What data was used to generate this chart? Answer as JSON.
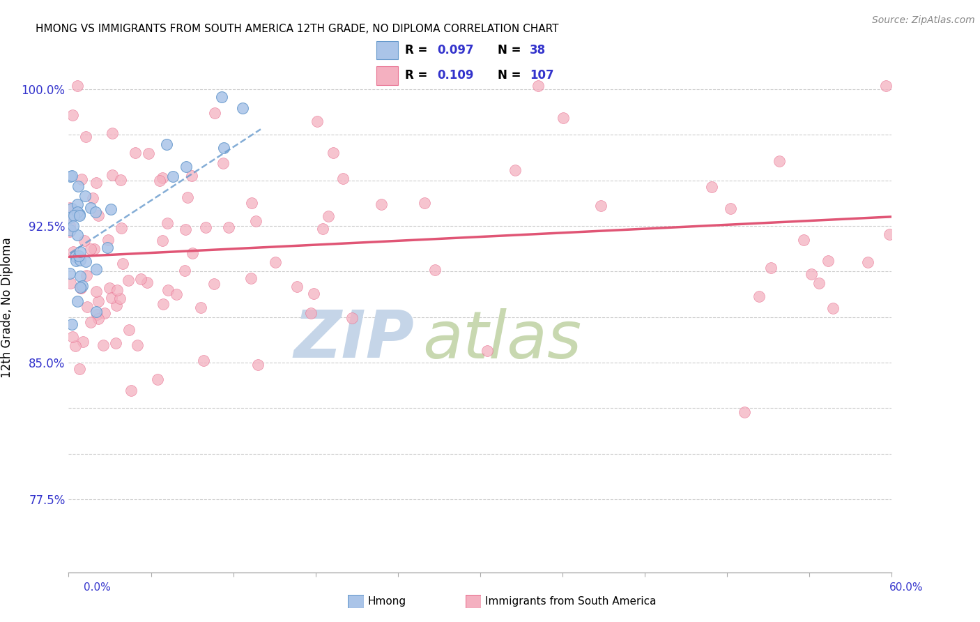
{
  "title": "HMONG VS IMMIGRANTS FROM SOUTH AMERICA 12TH GRADE, NO DIPLOMA CORRELATION CHART",
  "source_text": "Source: ZipAtlas.com",
  "ylabel": "12th Grade, No Diploma",
  "hmong_color": "#aac4e8",
  "hmong_edge_color": "#6699cc",
  "sa_color": "#f4b0c0",
  "sa_edge_color": "#e87090",
  "hmong_line_color": "#6699cc",
  "sa_line_color": "#e05575",
  "title_color": "#2222cc",
  "axis_tick_color": "#3333cc",
  "source_color": "#888888",
  "watermark_zip_color": "#c5d5e8",
  "watermark_atlas_color": "#c8d8b0",
  "grid_color": "#cccccc",
  "xmin": 0.0,
  "xmax": 0.6,
  "ymin": 0.735,
  "ymax": 1.025,
  "yticks": [
    0.775,
    0.8,
    0.825,
    0.85,
    0.875,
    0.9,
    0.925,
    0.95,
    0.975,
    1.0
  ],
  "ytick_labels": [
    "77.5%",
    "",
    "",
    "85.0%",
    "",
    "",
    "92.5%",
    "",
    "",
    "100.0%"
  ],
  "sa_line_x0": 0.0,
  "sa_line_x1": 0.6,
  "sa_line_y0": 0.908,
  "sa_line_y1": 0.93,
  "hmong_line_x0": 0.001,
  "hmong_line_x1": 0.14,
  "hmong_line_y0": 0.91,
  "hmong_line_y1": 0.978
}
